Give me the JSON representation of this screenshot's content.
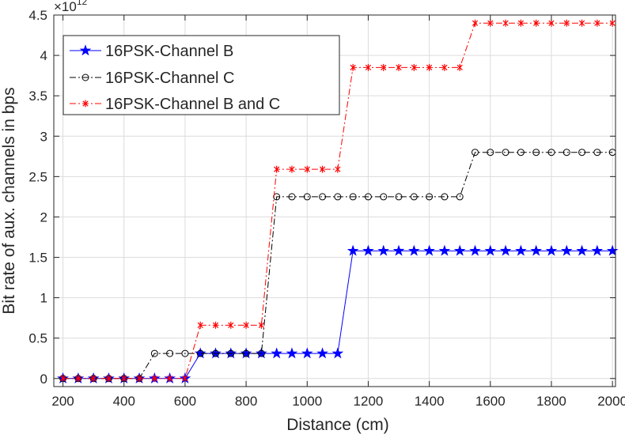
{
  "chart_data": {
    "type": "line",
    "xlabel": "Distance (cm)",
    "ylabel": "Bit rate of aux. channels in bps",
    "y_exponent_label": "×10",
    "y_exponent_power": "12",
    "xlim": [
      170,
      2010
    ],
    "ylim": [
      -0.1,
      4.5
    ],
    "xticks": [
      200,
      400,
      600,
      800,
      1000,
      1200,
      1400,
      1600,
      1800,
      2000
    ],
    "yticks": [
      0,
      0.5,
      1,
      1.5,
      2,
      2.5,
      3,
      3.5,
      4,
      4.5
    ],
    "grid": true,
    "legend_position": "top-left",
    "x": [
      200,
      250,
      300,
      350,
      400,
      450,
      500,
      550,
      600,
      650,
      700,
      750,
      800,
      850,
      900,
      950,
      1000,
      1050,
      1100,
      1150,
      1200,
      1250,
      1300,
      1350,
      1400,
      1450,
      1500,
      1550,
      1600,
      1650,
      1700,
      1750,
      1800,
      1850,
      1900,
      1950,
      2000
    ],
    "series": [
      {
        "name": "16PSK-Channel B",
        "color": "#0000ff",
        "marker": "star",
        "line_style": "solid",
        "values": [
          0,
          0,
          0,
          0,
          0,
          0,
          0,
          0,
          0,
          0.31,
          0.31,
          0.31,
          0.31,
          0.31,
          0.31,
          0.31,
          0.31,
          0.31,
          0.31,
          1.58,
          1.58,
          1.58,
          1.58,
          1.58,
          1.58,
          1.58,
          1.58,
          1.58,
          1.58,
          1.58,
          1.58,
          1.58,
          1.58,
          1.58,
          1.58,
          1.58,
          1.58
        ]
      },
      {
        "name": "16PSK-Channel C",
        "color": "#000000",
        "marker": "circle",
        "line_style": "dash-dot",
        "values": [
          0,
          0,
          0,
          0,
          0,
          0,
          0.31,
          0.31,
          0.31,
          0.31,
          0.31,
          0.31,
          0.31,
          0.31,
          2.25,
          2.25,
          2.25,
          2.25,
          2.25,
          2.25,
          2.25,
          2.25,
          2.25,
          2.25,
          2.25,
          2.25,
          2.25,
          2.8,
          2.8,
          2.8,
          2.8,
          2.8,
          2.8,
          2.8,
          2.8,
          2.8,
          2.8
        ]
      },
      {
        "name": "16PSK-Channel B and C",
        "color": "#ff0000",
        "marker": "asterisk",
        "line_style": "dash-dot",
        "values": [
          0,
          0,
          0,
          0,
          0,
          0,
          0,
          0,
          0,
          0.66,
          0.66,
          0.66,
          0.66,
          0.66,
          2.59,
          2.59,
          2.59,
          2.59,
          2.59,
          3.85,
          3.85,
          3.85,
          3.85,
          3.85,
          3.85,
          3.85,
          3.85,
          4.4,
          4.4,
          4.4,
          4.4,
          4.4,
          4.4,
          4.4,
          4.4,
          4.4,
          4.4
        ]
      }
    ]
  }
}
